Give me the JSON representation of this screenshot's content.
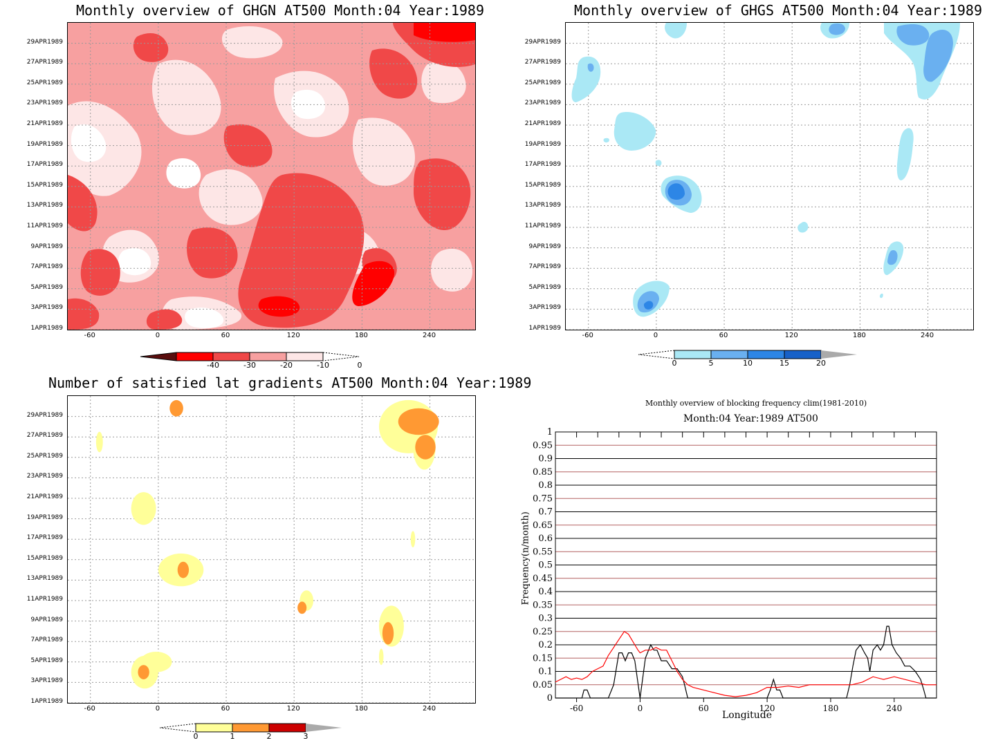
{
  "panels": {
    "ghgn": {
      "title": "Monthly overview of GHGN AT500 Month:04 Year:1989",
      "colorbar_labels": [
        "-40",
        "-30",
        "-20",
        "-10",
        "0"
      ],
      "colorbar_colors": [
        "#5a0d0d",
        "#ff0000",
        "#f04848",
        "#f7a0a0",
        "#fde6e6"
      ]
    },
    "ghgs": {
      "title": "Monthly overview of GHGS AT500 Month:04 Year:1989",
      "colorbar_labels": [
        "0",
        "5",
        "10",
        "15",
        "20"
      ],
      "colorbar_colors": [
        "#aae8f5",
        "#6ab0f0",
        "#2d86e6",
        "#1761c8",
        "#aaaaaa"
      ]
    },
    "nsat": {
      "title": "Number of satisfied lat gradients AT500 Month:04 Year:1989",
      "colorbar_labels": [
        "0",
        "1",
        "2",
        "3"
      ],
      "colorbar_colors": [
        "#ffff99",
        "#ff9933",
        "#cc0000",
        "#aaaaaa"
      ]
    },
    "freq": {
      "title": "Monthly overview of blocking frequency clim(1981-2010)",
      "subtitle": "Month:04 Year:1989  AT500",
      "xlabel": "Longitude",
      "ylabel": "Frequency(n/month)"
    }
  },
  "date_ticks": [
    "1APR1989",
    "3APR1989",
    "5APR1989",
    "7APR1989",
    "9APR1989",
    "11APR1989",
    "13APR1989",
    "15APR1989",
    "17APR1989",
    "19APR1989",
    "21APR1989",
    "23APR1989",
    "25APR1989",
    "27APR1989",
    "29APR1989"
  ],
  "lon_ticks": [
    "-60",
    "0",
    "60",
    "120",
    "180",
    "240"
  ],
  "chart_data": [
    {
      "type": "heatmap",
      "title": "Monthly overview of GHGN AT500 Month:04 Year:1989",
      "xlim": [
        -80,
        280
      ],
      "x_ticks": [
        -60,
        0,
        60,
        120,
        180,
        240
      ],
      "y_ticks": [
        "1APR1989",
        "3APR1989",
        "5APR1989",
        "7APR1989",
        "9APR1989",
        "11APR1989",
        "13APR1989",
        "15APR1989",
        "17APR1989",
        "19APR1989",
        "21APR1989",
        "23APR1989",
        "25APR1989",
        "27APR1989",
        "29APR1989"
      ],
      "levels": [
        -40,
        -30,
        -20,
        -10,
        0
      ],
      "grid": true
    },
    {
      "type": "heatmap",
      "title": "Monthly overview of GHGS AT500 Month:04 Year:1989",
      "xlim": [
        -80,
        280
      ],
      "x_ticks": [
        -60,
        0,
        60,
        120,
        180,
        240
      ],
      "y_ticks": [
        "1APR1989",
        "3APR1989",
        "5APR1989",
        "7APR1989",
        "9APR1989",
        "11APR1989",
        "13APR1989",
        "15APR1989",
        "17APR1989",
        "19APR1989",
        "21APR1989",
        "23APR1989",
        "25APR1989",
        "27APR1989",
        "29APR1989"
      ],
      "levels": [
        0,
        5,
        10,
        15,
        20
      ],
      "grid": true
    },
    {
      "type": "heatmap",
      "title": "Number of satisfied lat gradients AT500 Month:04 Year:1989",
      "xlim": [
        -80,
        280
      ],
      "x_ticks": [
        -60,
        0,
        60,
        120,
        180,
        240
      ],
      "y_ticks": [
        "1APR1989",
        "3APR1989",
        "5APR1989",
        "7APR1989",
        "9APR1989",
        "11APR1989",
        "13APR1989",
        "15APR1989",
        "17APR1989",
        "19APR1989",
        "21APR1989",
        "23APR1989",
        "25APR1989",
        "27APR1989",
        "29APR1989"
      ],
      "levels": [
        0,
        1,
        2,
        3
      ],
      "blobs": [
        {
          "lon": -12,
          "day": 4,
          "rlon": 12,
          "rday": 1.6,
          "level": 1
        },
        {
          "lon": -13,
          "day": 4,
          "rlon": 5,
          "rday": 0.7,
          "level": 2
        },
        {
          "lon": -2,
          "day": 5,
          "rlon": 14,
          "rday": 1.0,
          "level": 1
        },
        {
          "lon": 20,
          "day": 14,
          "rlon": 20,
          "rday": 1.6,
          "level": 1
        },
        {
          "lon": 22,
          "day": 14,
          "rlon": 5,
          "rday": 0.8,
          "level": 2
        },
        {
          "lon": -13,
          "day": 20,
          "rlon": 11,
          "rday": 1.6,
          "level": 1
        },
        {
          "lon": -52,
          "day": 26.5,
          "rlon": 3,
          "rday": 1.0,
          "level": 1
        },
        {
          "lon": 16,
          "day": 29.8,
          "rlon": 6,
          "rday": 0.8,
          "level": 2
        },
        {
          "lon": 131,
          "day": 11,
          "rlon": 6,
          "rday": 1.0,
          "level": 1
        },
        {
          "lon": 127,
          "day": 10.3,
          "rlon": 4,
          "rday": 0.6,
          "level": 2
        },
        {
          "lon": 206,
          "day": 8.5,
          "rlon": 11,
          "rday": 2.0,
          "level": 1
        },
        {
          "lon": 203,
          "day": 7.8,
          "rlon": 5,
          "rday": 1.1,
          "level": 2
        },
        {
          "lon": 221,
          "day": 28,
          "rlon": 26,
          "rday": 2.6,
          "level": 1
        },
        {
          "lon": 235,
          "day": 26,
          "rlon": 10,
          "rday": 2.2,
          "level": 1
        },
        {
          "lon": 230,
          "day": 28.5,
          "rlon": 18,
          "rday": 1.3,
          "level": 2
        },
        {
          "lon": 236,
          "day": 26,
          "rlon": 9,
          "rday": 1.2,
          "level": 2
        },
        {
          "lon": 225,
          "day": 17,
          "rlon": 2,
          "rday": 0.8,
          "level": 1
        },
        {
          "lon": 197,
          "day": 5.5,
          "rlon": 2,
          "rday": 0.8,
          "level": 1
        }
      ],
      "grid": true
    },
    {
      "type": "line",
      "title": "Monthly overview of blocking frequency clim(1981-2010)",
      "subtitle": "Month:04 Year:1989  AT500",
      "xlabel": "Longitude",
      "ylabel": "Frequency(n/month)",
      "xlim": [
        -80,
        280
      ],
      "ylim": [
        0,
        1
      ],
      "x_ticks": [
        -60,
        0,
        60,
        120,
        180,
        240
      ],
      "y_ticks": [
        0,
        0.05,
        0.1,
        0.15,
        0.2,
        0.25,
        0.3,
        0.35,
        0.4,
        0.45,
        0.5,
        0.55,
        0.6,
        0.65,
        0.7,
        0.75,
        0.8,
        0.85,
        0.9,
        0.95,
        1
      ],
      "series": [
        {
          "color": "#000000",
          "x": [
            -80,
            -55,
            -53,
            -50,
            -47,
            -30,
            -25,
            -20,
            -17,
            -14,
            -11,
            -8,
            -5,
            0,
            5,
            10,
            13,
            16,
            20,
            25,
            30,
            35,
            40,
            42,
            45,
            50,
            120,
            123,
            126,
            129,
            132,
            135,
            140,
            195,
            198,
            201,
            204,
            208,
            212,
            215,
            217,
            220,
            224,
            227,
            230,
            233,
            235,
            238,
            242,
            246,
            250,
            255,
            260,
            265,
            268,
            270,
            280
          ],
          "y": [
            0,
            0,
            0.03,
            0.03,
            0,
            0,
            0.05,
            0.17,
            0.17,
            0.14,
            0.17,
            0.17,
            0.14,
            0,
            0.15,
            0.2,
            0.18,
            0.18,
            0.14,
            0.14,
            0.11,
            0.11,
            0.08,
            0.05,
            0,
            0,
            0,
            0.03,
            0.07,
            0.03,
            0.03,
            0,
            0,
            0,
            0.05,
            0.12,
            0.18,
            0.2,
            0.17,
            0.15,
            0.1,
            0.18,
            0.2,
            0.18,
            0.2,
            0.27,
            0.27,
            0.2,
            0.17,
            0.15,
            0.12,
            0.12,
            0.1,
            0.07,
            0.03,
            0,
            0
          ]
        },
        {
          "color": "#ff0000",
          "x": [
            -80,
            -70,
            -65,
            -60,
            -55,
            -50,
            -45,
            -40,
            -35,
            -30,
            -25,
            -20,
            -15,
            -11,
            -8,
            -5,
            -2,
            0,
            5,
            10,
            15,
            20,
            25,
            30,
            35,
            40,
            45,
            50,
            60,
            70,
            80,
            90,
            100,
            110,
            120,
            130,
            140,
            150,
            160,
            170,
            180,
            190,
            200,
            210,
            220,
            230,
            240,
            250,
            260,
            270,
            280
          ],
          "y": [
            0.06,
            0.08,
            0.07,
            0.075,
            0.07,
            0.08,
            0.1,
            0.11,
            0.12,
            0.16,
            0.19,
            0.22,
            0.25,
            0.24,
            0.22,
            0.2,
            0.18,
            0.17,
            0.18,
            0.18,
            0.19,
            0.18,
            0.18,
            0.14,
            0.1,
            0.07,
            0.05,
            0.04,
            0.03,
            0.02,
            0.01,
            0.005,
            0.01,
            0.02,
            0.04,
            0.04,
            0.045,
            0.04,
            0.05,
            0.05,
            0.05,
            0.05,
            0.05,
            0.06,
            0.08,
            0.07,
            0.08,
            0.07,
            0.06,
            0.05,
            0.05
          ]
        }
      ],
      "grid": true
    }
  ]
}
